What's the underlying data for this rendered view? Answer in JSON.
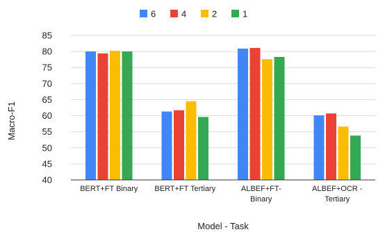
{
  "chart_data": {
    "type": "bar",
    "categories": [
      [
        "BERT+FT Binary"
      ],
      [
        "BERT+FT Tertiary"
      ],
      [
        "ALBEF+FT-",
        "Binary"
      ],
      [
        "ALBEF+OCR -",
        "Tertiary"
      ]
    ],
    "series": [
      {
        "name": "6",
        "color": "#4285f4",
        "values": [
          80.0,
          61.3,
          80.9,
          60.1
        ]
      },
      {
        "name": "4",
        "color": "#ea4335",
        "values": [
          79.4,
          61.7,
          81.1,
          60.7
        ]
      },
      {
        "name": "2",
        "color": "#fbbc04",
        "values": [
          80.2,
          64.5,
          77.6,
          56.6
        ]
      },
      {
        "name": "1",
        "color": "#34a853",
        "values": [
          80.0,
          59.6,
          78.3,
          53.8
        ]
      }
    ],
    "xlabel": "Model - Task",
    "ylabel": "Macro-F1",
    "ylim": [
      40,
      85
    ],
    "yticks": [
      40,
      45,
      50,
      55,
      60,
      65,
      70,
      75,
      80,
      85
    ],
    "grid": true,
    "legend_position": "top"
  }
}
